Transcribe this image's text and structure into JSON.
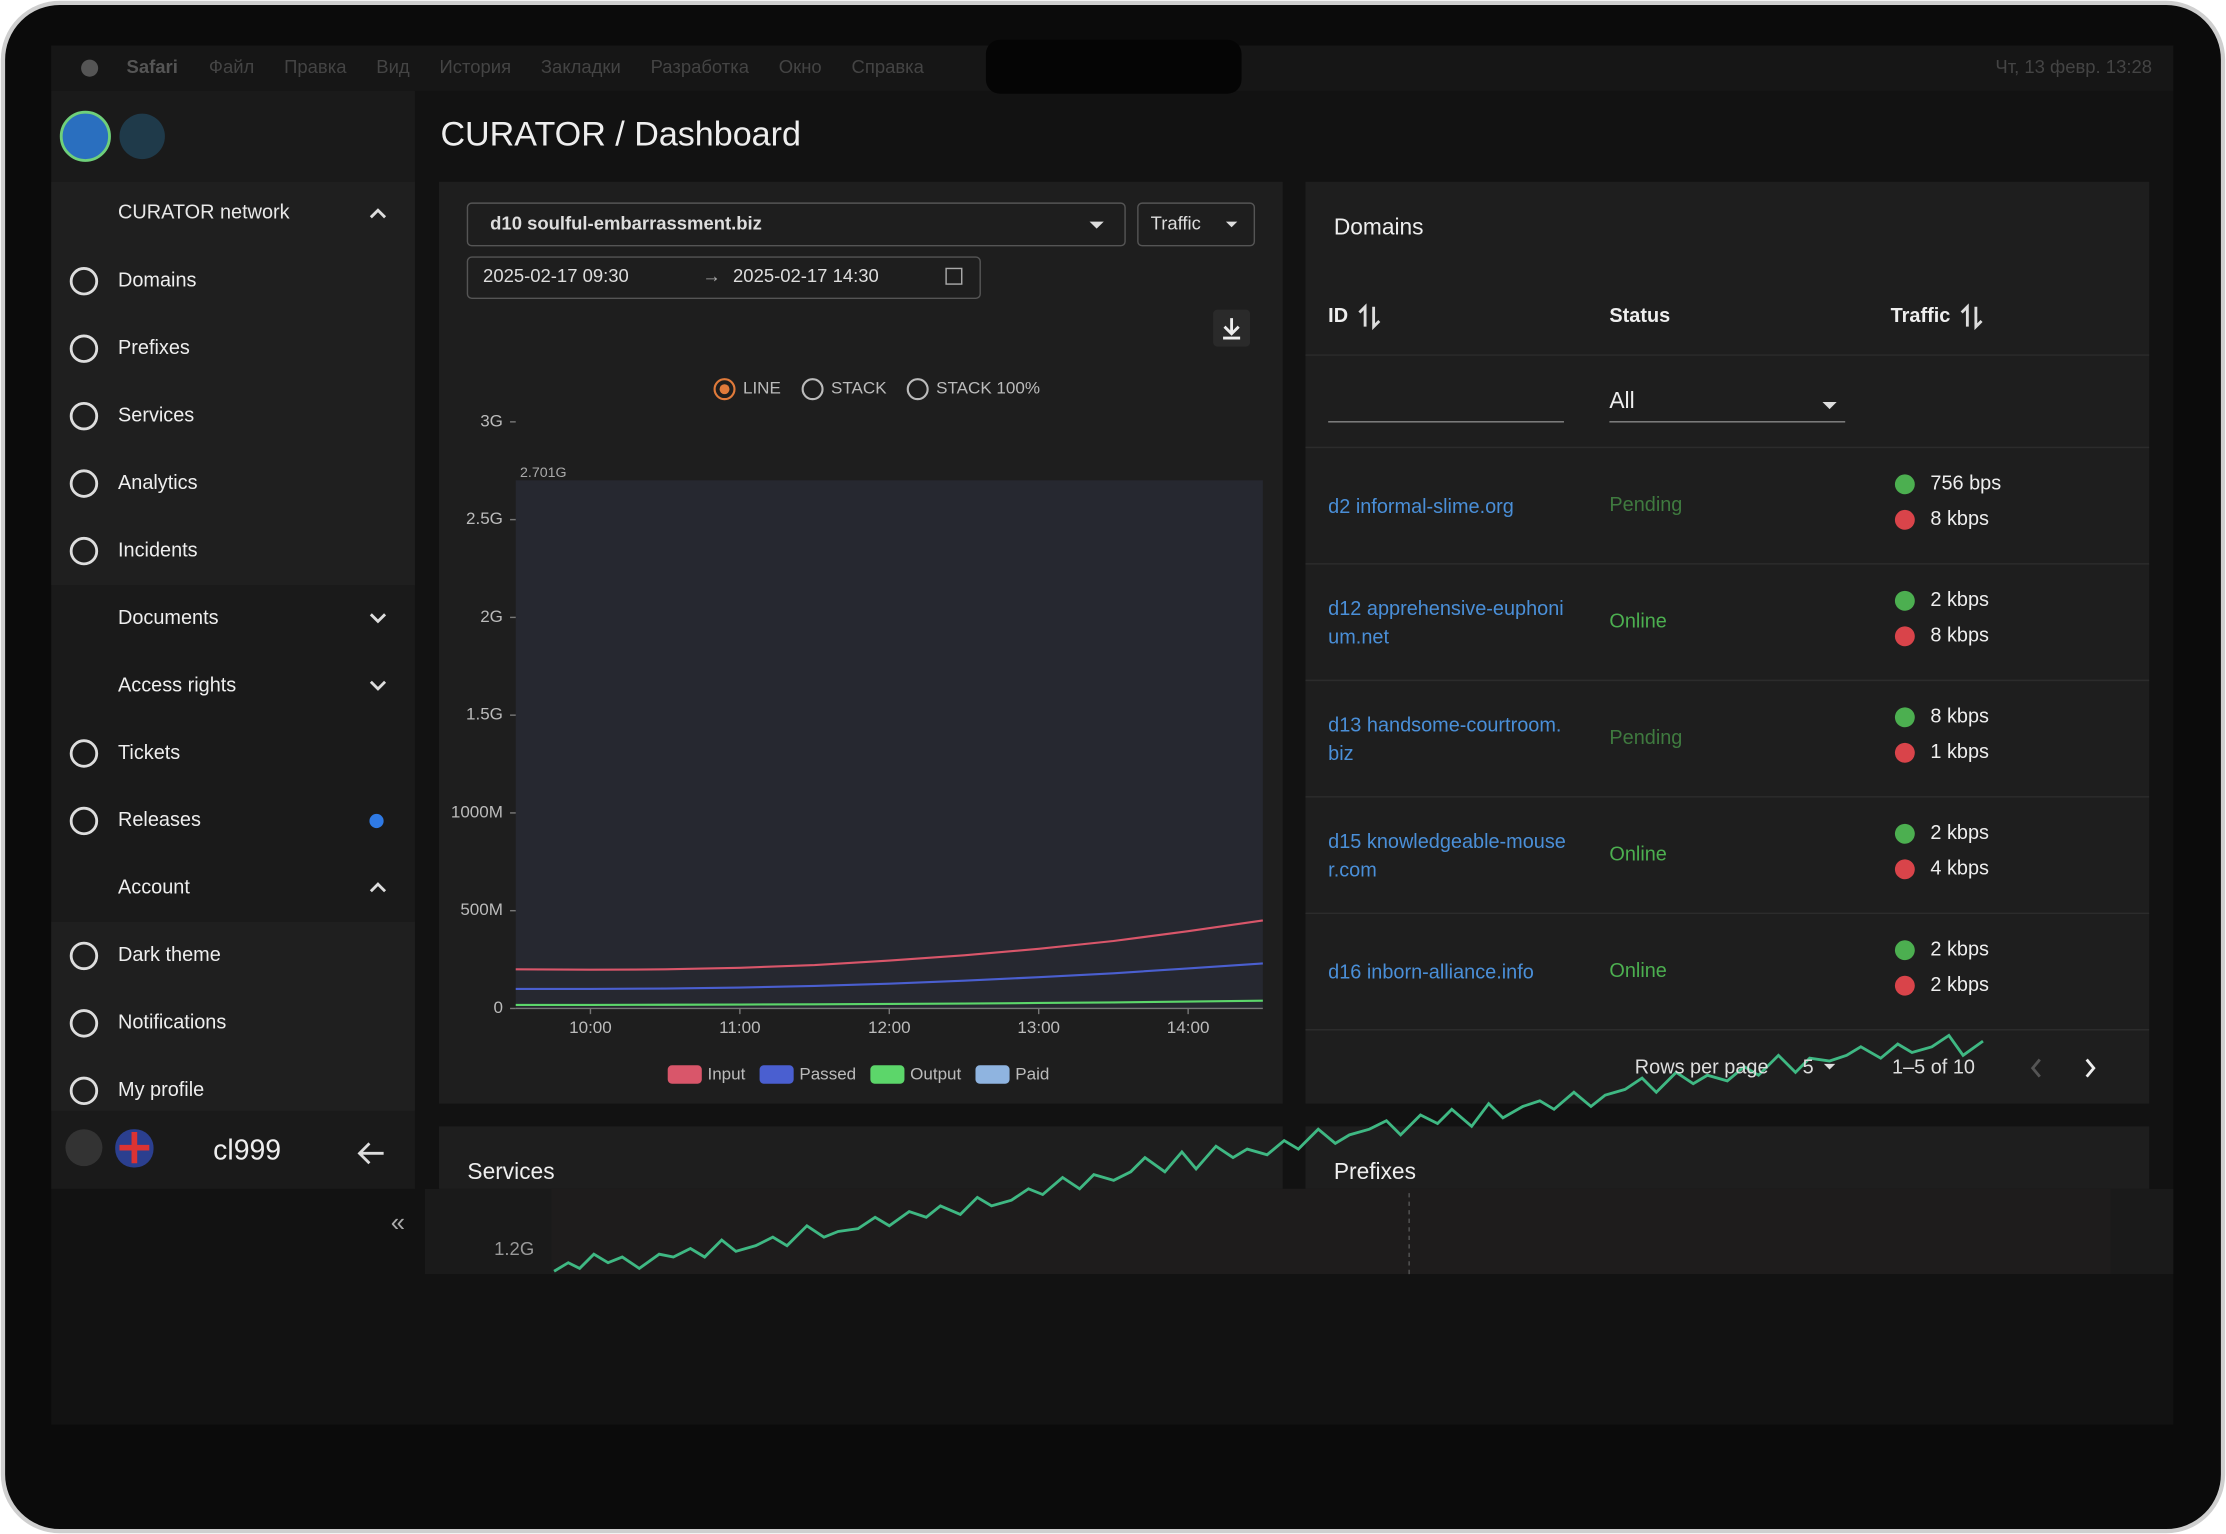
{
  "menubar": {
    "app": "Safari",
    "items": [
      "Файл",
      "Правка",
      "Вид",
      "История",
      "Закладки",
      "Разработка",
      "Окно",
      "Справка"
    ],
    "clock": "Чт, 13 февр. 13:28"
  },
  "sidebar": {
    "network": "CURATOR network",
    "items": [
      "Domains",
      "Prefixes",
      "Services",
      "Analytics",
      "Incidents"
    ],
    "groups": [
      "Documents",
      "Access rights"
    ],
    "items2": [
      "Tickets",
      "Releases"
    ],
    "account": "Account",
    "account_items": [
      "Dark theme",
      "Notifications",
      "My profile"
    ],
    "user": "cl999"
  },
  "header": {
    "title": "CURATOR / Dashboard"
  },
  "traffic": {
    "domain": "d10 soulful-embarrassment.biz",
    "metric": "Traffic",
    "from": "2025-02-17 09:30",
    "to": "2025-02-17 14:30",
    "modes": [
      "LINE",
      "STACK",
      "STACK 100%"
    ]
  },
  "chart_data": {
    "type": "line",
    "x": [
      "09:30",
      "10:00",
      "10:30",
      "11:00",
      "11:30",
      "12:00",
      "12:30",
      "13:00",
      "13:30",
      "14:00",
      "14:30"
    ],
    "xlim": [
      "09:30",
      "14:30"
    ],
    "xticks": [
      "10:00",
      "11:00",
      "12:00",
      "13:00",
      "14:00"
    ],
    "ylim": [
      0,
      3000000000
    ],
    "yticks": [
      0,
      {
        "value": 500000000,
        "label": "500M"
      },
      {
        "value": 1000000000,
        "label": "1000M"
      },
      {
        "value": 1500000000,
        "label": "1.5G"
      },
      {
        "value": 2000000000,
        "label": "2G"
      },
      {
        "value": 2500000000,
        "label": "2.5G"
      },
      {
        "value": 3000000000,
        "label": "3G"
      }
    ],
    "annotation": {
      "value": 2701000000,
      "label": "2.701G"
    },
    "series": [
      {
        "name": "Input",
        "color": "#d9566a",
        "values": [
          200000000,
          198000000,
          200000000,
          208000000,
          222000000,
          245000000,
          272000000,
          305000000,
          345000000,
          395000000,
          450000000
        ]
      },
      {
        "name": "Passed",
        "color": "#4a5fd0",
        "values": [
          100000000,
          100000000,
          102000000,
          107000000,
          115000000,
          127000000,
          142000000,
          160000000,
          180000000,
          205000000,
          230000000
        ]
      },
      {
        "name": "Output",
        "color": "#5cd66a",
        "values": [
          18000000,
          18000000,
          19000000,
          20000000,
          21000000,
          23000000,
          25000000,
          28000000,
          31000000,
          35000000,
          40000000
        ]
      },
      {
        "name": "Paid",
        "color": "#8fb4e0",
        "values": [
          null,
          null,
          null,
          null,
          null,
          null,
          null,
          null,
          null,
          null,
          null
        ]
      }
    ]
  },
  "domains": {
    "title": "Domains",
    "columns": [
      "ID",
      "Status",
      "Traffic"
    ],
    "filter": "All",
    "rows": [
      {
        "id": "d2 informal-slime.org",
        "status": "Pending",
        "up": "756 bps",
        "down": "8 kbps"
      },
      {
        "id": "d12 apprehensive-euphonium.net",
        "status": "Online",
        "up": "2 kbps",
        "down": "8 kbps"
      },
      {
        "id": "d13 handsome-courtroom.biz",
        "status": "Pending",
        "up": "8 kbps",
        "down": "1 kbps"
      },
      {
        "id": "d15 knowledgeable-mouser.com",
        "status": "Online",
        "up": "2 kbps",
        "down": "4 kbps"
      },
      {
        "id": "d16 inborn-alliance.info",
        "status": "Online",
        "up": "2 kbps",
        "down": "2 kbps"
      }
    ],
    "rows_per_page_label": "Rows per page",
    "rows_per_page": 5,
    "range": "1–5 of 10"
  },
  "services": {
    "title": "Services",
    "tick": "1.2G"
  },
  "prefixes": {
    "title": "Prefixes"
  }
}
